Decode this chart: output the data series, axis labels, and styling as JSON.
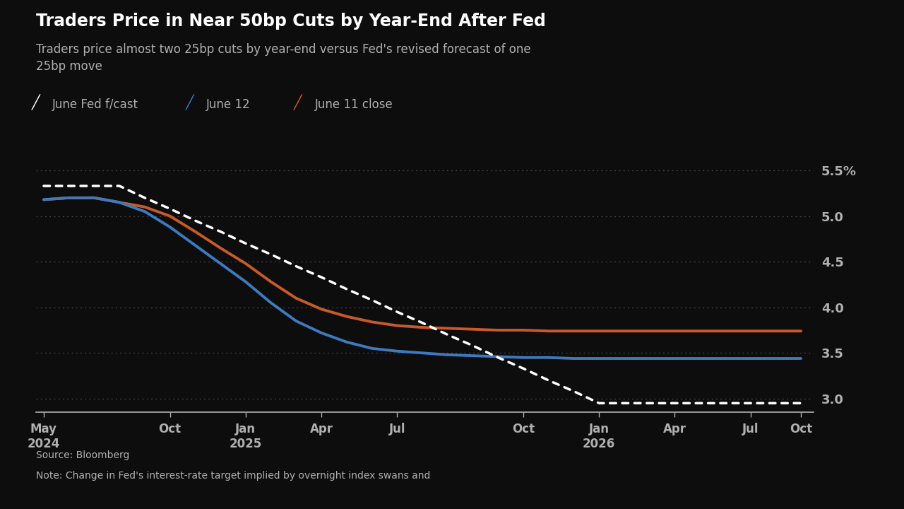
{
  "title": "Traders Price in Near 50bp Cuts by Year-End After Fed",
  "subtitle": "Traders price almost two 25bp cuts by year-end versus Fed's revised forecast of one\n25bp move",
  "background_color": "#0d0d0d",
  "text_color": "#b0b0b0",
  "ylim": [
    2.85,
    5.75
  ],
  "yticks": [
    3.0,
    3.5,
    4.0,
    4.5,
    5.0,
    5.5
  ],
  "ytick_labels": [
    "3.0",
    "3.5",
    "4.0",
    "4.5",
    "5.0",
    "5.5%"
  ],
  "source_text": "Source: Bloomberg",
  "note_text": "Note: Change in Fed's interest-rate target implied by overnight index swans and",
  "fed_color": "#ffffff",
  "june12_color": "#3d7abf",
  "june11_color": "#c85a2a",
  "x_months": [
    0,
    1,
    2,
    3,
    4,
    5,
    6,
    7,
    8,
    9,
    10,
    11,
    12,
    13,
    14,
    15,
    16,
    17,
    18,
    19,
    20,
    21,
    22,
    23,
    24,
    25,
    26,
    27,
    28,
    29,
    30
  ],
  "fed_forecast": [
    5.33,
    5.33,
    5.33,
    5.33,
    5.2,
    5.08,
    4.95,
    4.83,
    4.7,
    4.58,
    4.45,
    4.33,
    4.2,
    4.08,
    3.95,
    3.83,
    3.7,
    3.58,
    3.45,
    3.33,
    3.2,
    3.08,
    2.95,
    2.95,
    2.95,
    2.95,
    2.95,
    2.95,
    2.95,
    2.95,
    2.95
  ],
  "june12": [
    5.18,
    5.2,
    5.2,
    5.15,
    5.05,
    4.88,
    4.68,
    4.48,
    4.28,
    4.05,
    3.85,
    3.72,
    3.62,
    3.55,
    3.52,
    3.5,
    3.48,
    3.47,
    3.46,
    3.45,
    3.45,
    3.44,
    3.44,
    3.44,
    3.44,
    3.44,
    3.44,
    3.44,
    3.44,
    3.44,
    3.44
  ],
  "june11": [
    5.18,
    5.2,
    5.2,
    5.15,
    5.1,
    5.0,
    4.83,
    4.65,
    4.48,
    4.28,
    4.1,
    3.98,
    3.9,
    3.84,
    3.8,
    3.78,
    3.77,
    3.76,
    3.75,
    3.75,
    3.74,
    3.74,
    3.74,
    3.74,
    3.74,
    3.74,
    3.74,
    3.74,
    3.74,
    3.74,
    3.74
  ],
  "n_points": 31,
  "x_tick_months": [
    0,
    5,
    8,
    11,
    14,
    19,
    22,
    25,
    28,
    30
  ],
  "x_tick_labels": [
    "May\n2024",
    "Oct",
    "Jan\n2025",
    "Apr",
    "Jul",
    "Oct",
    "Jan\n2026",
    "Apr",
    "Jul",
    "Oct"
  ]
}
